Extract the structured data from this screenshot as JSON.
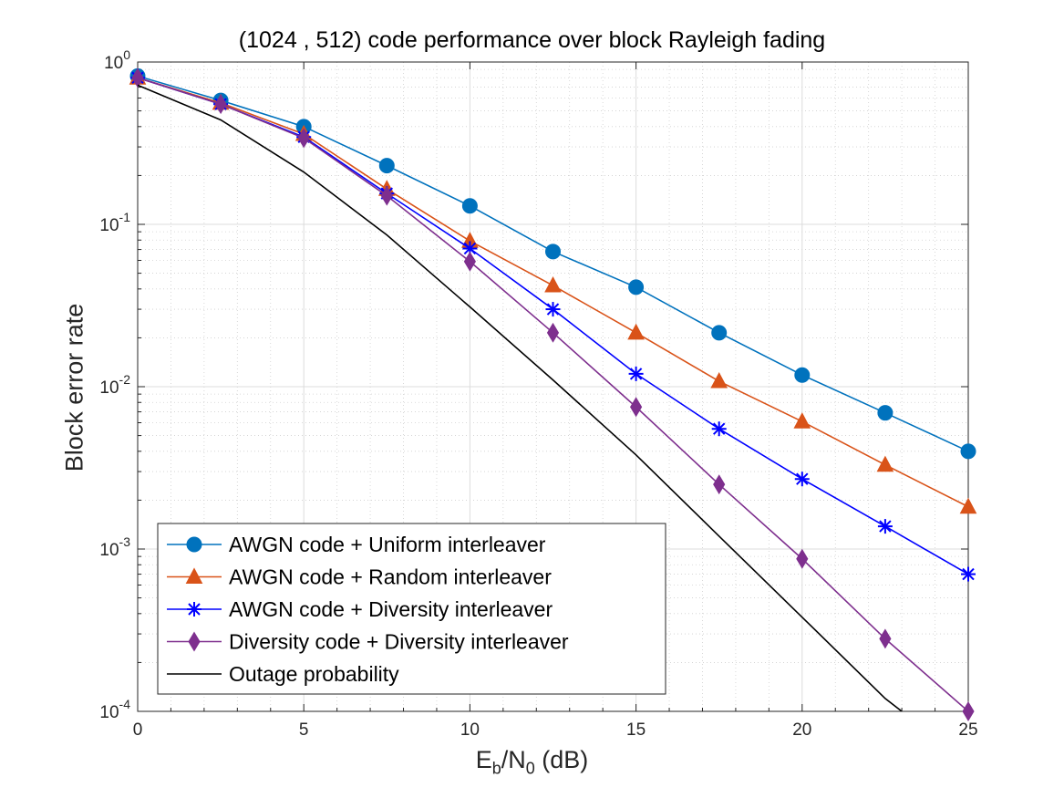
{
  "chart_data": {
    "type": "line",
    "title": "(1024 , 512) code performance over block Rayleigh fading",
    "xlabel": {
      "main1": "E",
      "sub1": "b",
      "main2": "/N",
      "sub2": "0",
      "suffix": " (dB)"
    },
    "ylabel": "Block error rate",
    "yscale": "log",
    "xlim": [
      0,
      25
    ],
    "ylim": [
      0.0001,
      1
    ],
    "x_ticks": [
      "0",
      "5",
      "10",
      "15",
      "20",
      "25"
    ],
    "y_ticks": [
      {
        "base": "10",
        "exp": "-4"
      },
      {
        "base": "10",
        "exp": "-3"
      },
      {
        "base": "10",
        "exp": "-2"
      },
      {
        "base": "10",
        "exp": "-1"
      },
      {
        "base": "10",
        "exp": "0"
      }
    ],
    "grid": true,
    "minor_grid": true,
    "legend_position": "bottom-left",
    "series": [
      {
        "name": "AWGN code + Uniform interleaver",
        "color": "#0072BD",
        "marker": "circle",
        "x": [
          0,
          2.5,
          5,
          7.5,
          10,
          12.5,
          15,
          17.5,
          20,
          22.5,
          25
        ],
        "y": [
          0.82,
          0.58,
          0.4,
          0.23,
          0.13,
          0.068,
          0.041,
          0.0215,
          0.0118,
          0.0069,
          0.004
        ]
      },
      {
        "name": "AWGN code + Random interleaver",
        "color": "#D95319",
        "marker": "triangle",
        "x": [
          0,
          2.5,
          5,
          7.5,
          10,
          12.5,
          15,
          17.5,
          20,
          22.5,
          25
        ],
        "y": [
          0.8,
          0.56,
          0.36,
          0.165,
          0.079,
          0.042,
          0.0215,
          0.0108,
          0.0061,
          0.0033,
          0.00182
        ]
      },
      {
        "name": "AWGN code + Diversity interleaver",
        "color": "#0000FF",
        "marker": "asterisk",
        "x": [
          0,
          2.5,
          5,
          7.5,
          10,
          12.5,
          15,
          17.5,
          20,
          22.5,
          25
        ],
        "y": [
          0.8,
          0.55,
          0.345,
          0.155,
          0.071,
          0.03,
          0.012,
          0.0055,
          0.0027,
          0.00138,
          0.0007
        ]
      },
      {
        "name": "Diversity code + Diversity interleaver",
        "color": "#7E2F8E",
        "marker": "diamond",
        "x": [
          0,
          2.5,
          5,
          7.5,
          10,
          12.5,
          15,
          17.5,
          20,
          22.5,
          25
        ],
        "y": [
          0.8,
          0.55,
          0.34,
          0.15,
          0.059,
          0.0215,
          0.0075,
          0.0025,
          0.00087,
          0.00028,
          0.0001
        ]
      },
      {
        "name": "Outage probability",
        "color": "#000000",
        "marker": "none",
        "x": [
          0,
          2.5,
          5,
          7.5,
          10,
          12.5,
          15,
          17.5,
          20,
          22.5,
          23
        ],
        "y": [
          0.72,
          0.44,
          0.21,
          0.086,
          0.031,
          0.011,
          0.0038,
          0.0012,
          0.00038,
          0.00012,
          0.0001
        ]
      }
    ]
  }
}
